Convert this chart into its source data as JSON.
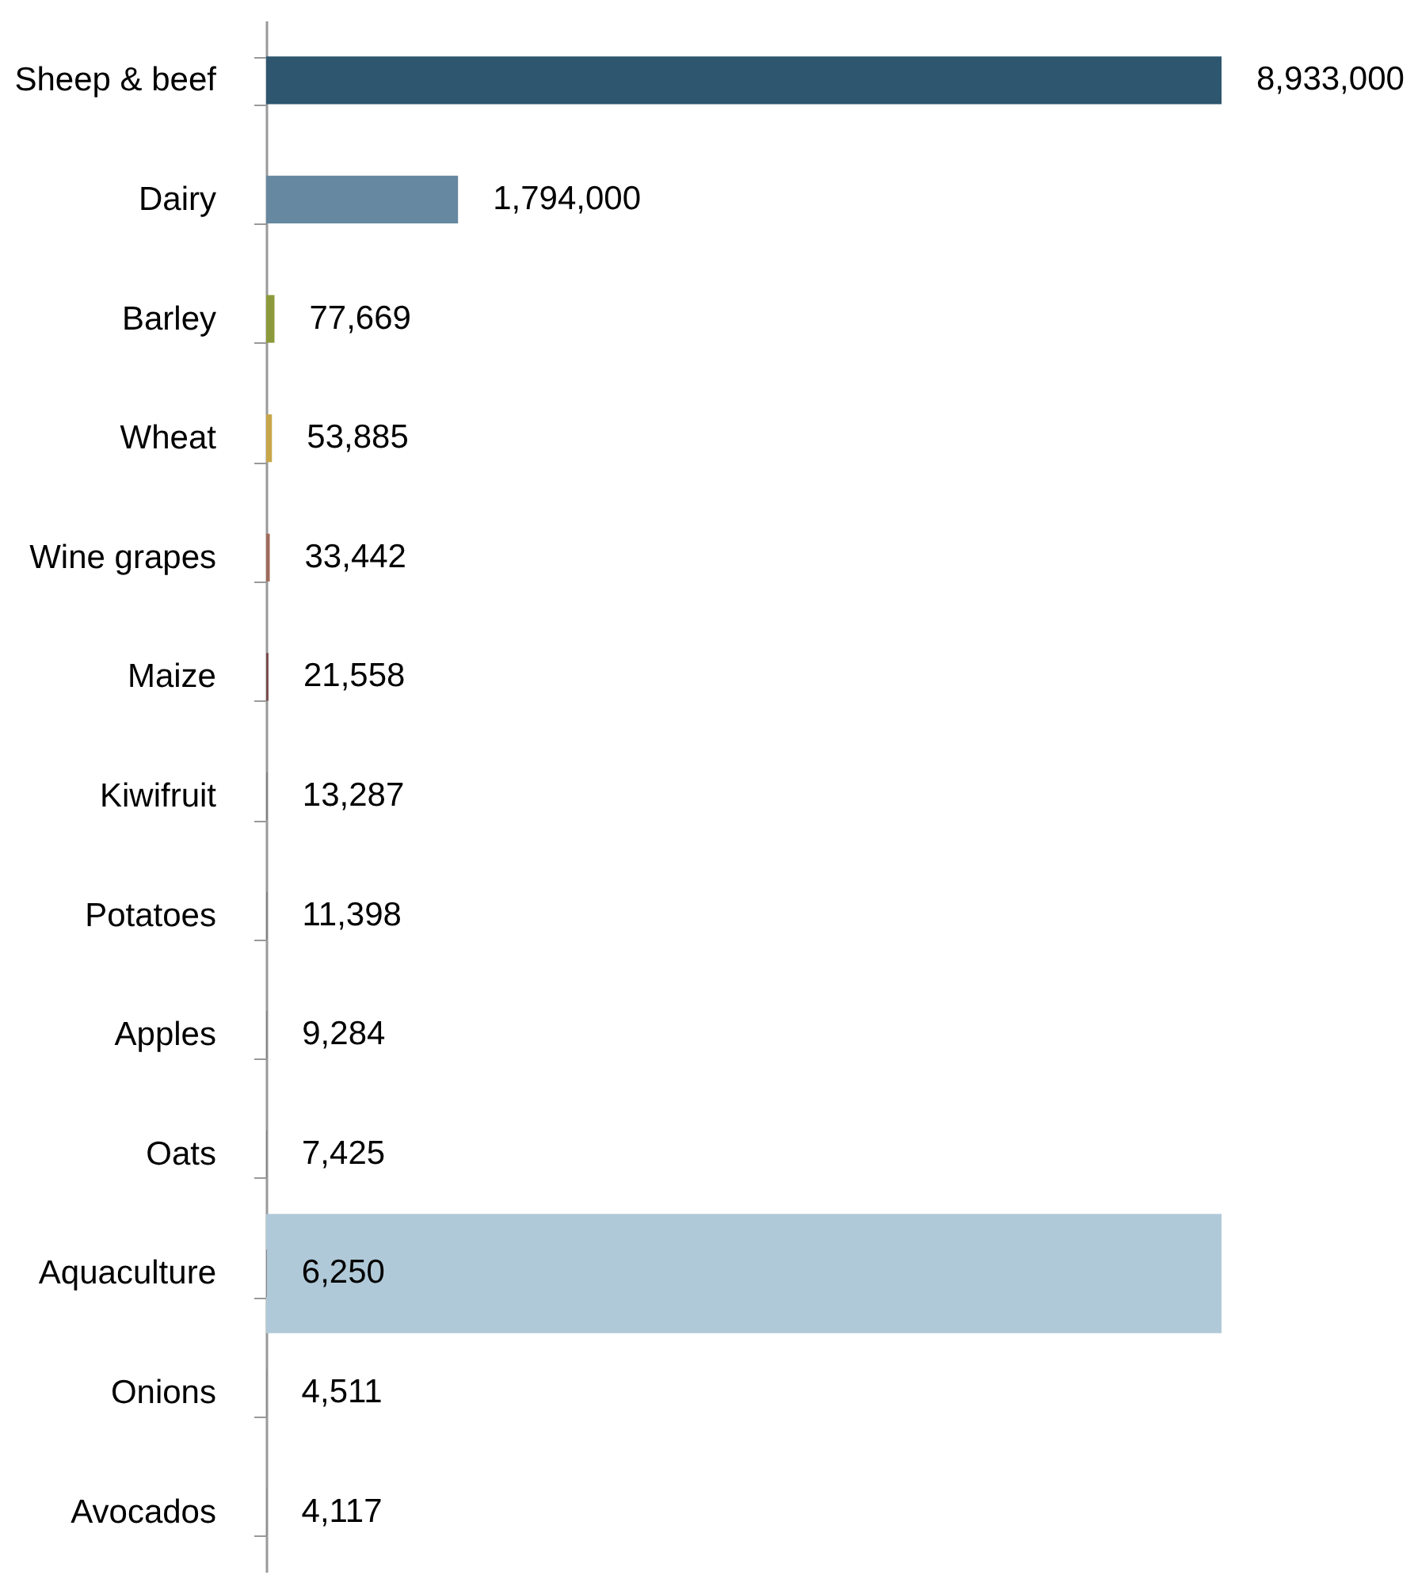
{
  "chart_data": {
    "type": "bar",
    "orientation": "horizontal",
    "categories": [
      "Sheep & beef",
      "Dairy",
      "Barley",
      "Wheat",
      "Wine grapes",
      "Maize",
      "Kiwifruit",
      "Potatoes",
      "Apples",
      "Oats",
      "Aquaculture",
      "Onions",
      "Avocados"
    ],
    "values": [
      8933000,
      1794000,
      77669,
      53885,
      33442,
      21558,
      13287,
      11398,
      9284,
      7425,
      6250,
      4511,
      4117
    ],
    "value_labels": [
      "8,933,000",
      "1,794,000",
      "77,669",
      "53,885",
      "33,442",
      "21,558",
      "13,287",
      "11,398",
      "9,284",
      "7,425",
      "6,250",
      "4,511",
      "4,117"
    ],
    "colors": [
      "#2e566e",
      "#6688a0",
      "#8c9a3c",
      "#c8a64a",
      "#a06a5a",
      "#7a4a4a",
      "#7f7f7f",
      "#7f7f7f",
      "#7f7f7f",
      "#7f7f7f",
      "#7f7f7f",
      "#7f7f7f",
      "#7f7f7f"
    ],
    "bands": [
      {
        "axis": "y",
        "from": "Aquaculture",
        "to": "Aquaculture",
        "color": "#b0c9d8"
      }
    ],
    "grid": false
  }
}
